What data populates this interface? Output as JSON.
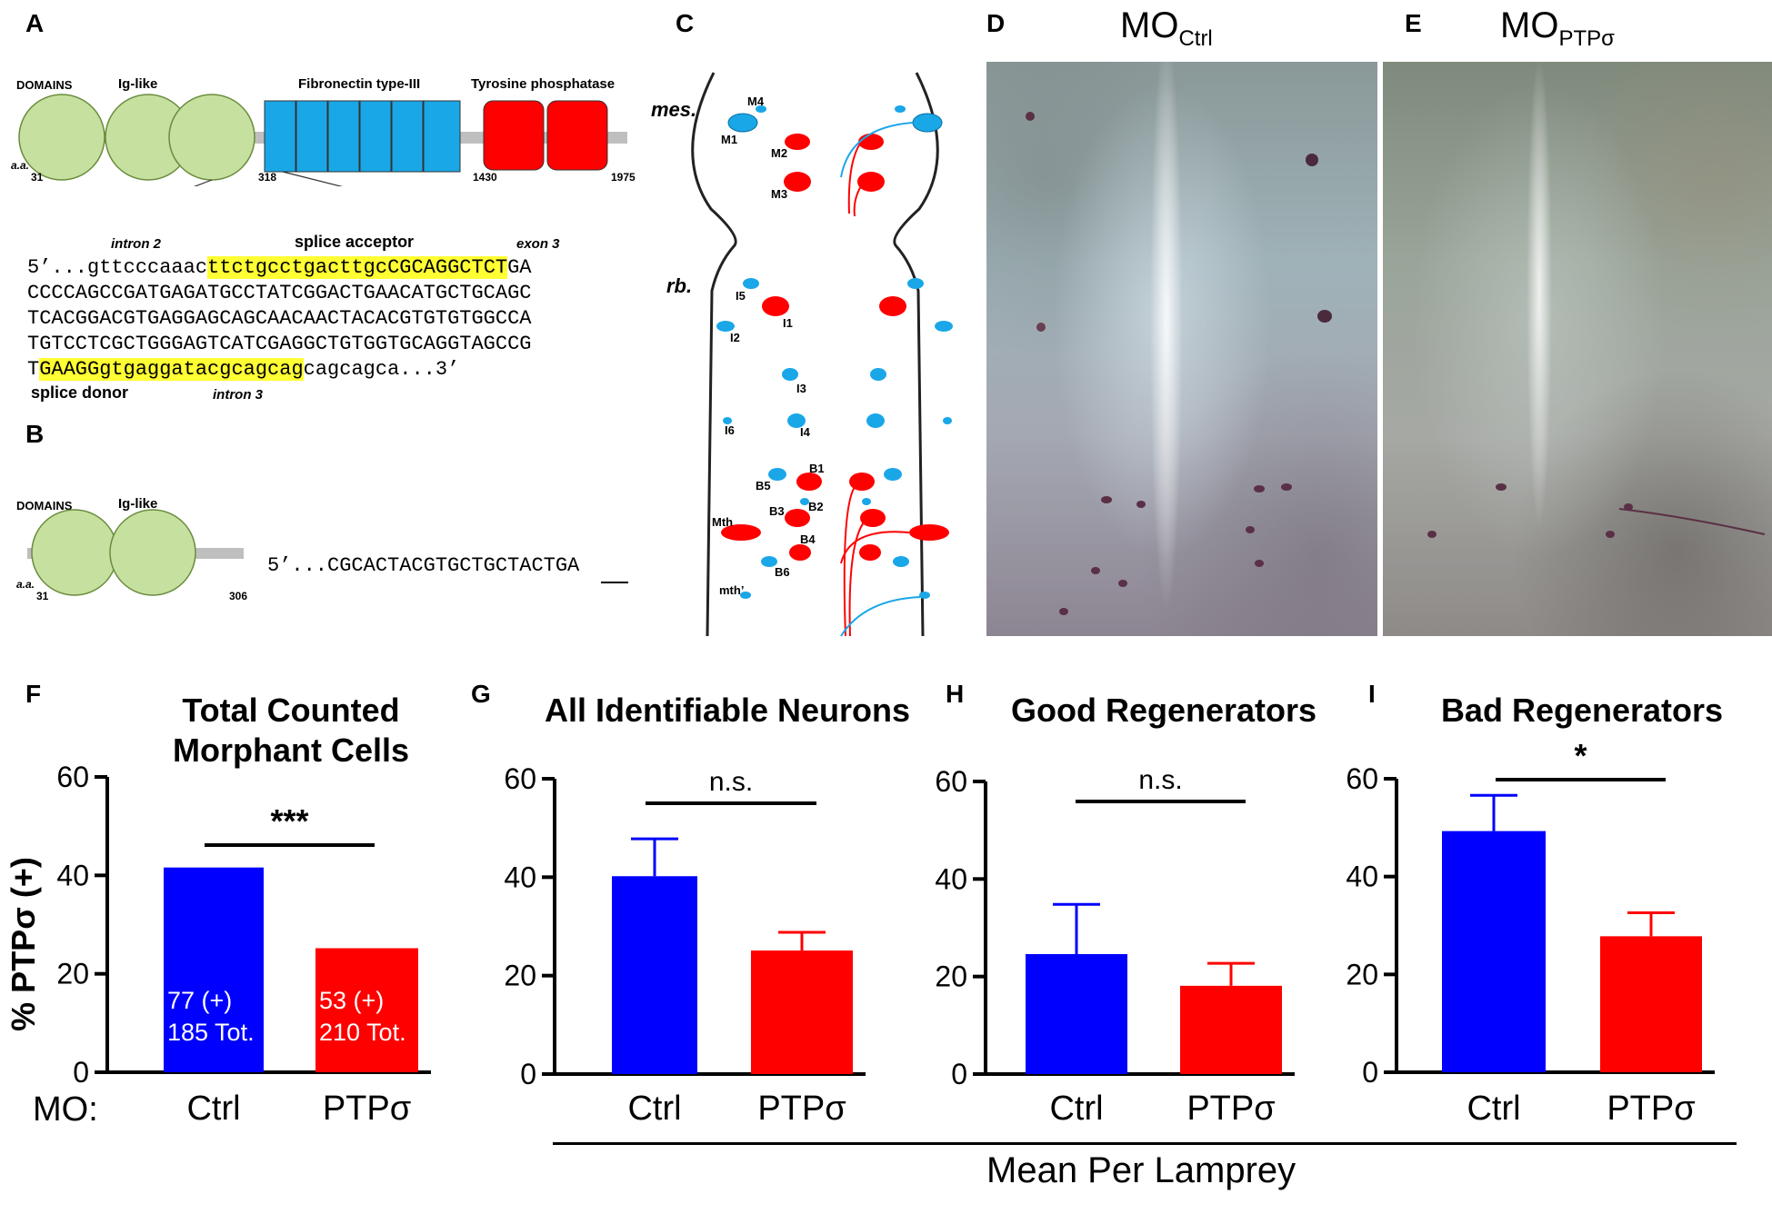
{
  "panel_letters": [
    "A",
    "B",
    "C",
    "D",
    "E",
    "F",
    "G",
    "H",
    "I"
  ],
  "panelA": {
    "domains_label": "DOMAINS",
    "ig_label": "Ig-like",
    "fn_label": "Fibronectin type-III",
    "tp_label": "Tyrosine phosphatase",
    "aa_label": "a.a.",
    "aa_positions": [
      "31",
      "318",
      "1430",
      "1975"
    ],
    "intron2": "intron 2",
    "splice_acceptor": "splice acceptor",
    "exon3": "exon 3",
    "seq_line1_pre": "5’...gttcccaaac",
    "seq_line1_hl": "ttctgcctgacttgcCGCAGGCTCT",
    "seq_line1_post": "GA",
    "seq_line2": "CCCCAGCCGATGAGATGCCTATCGGACTGAACATGCTGCAGC",
    "seq_line3": "TCACGGACGTGAGGAGCAGCAACAACTACACGTGTGTGGCCA",
    "seq_line4": "TGTCCTCGCTGGGAGTCATCGAGGCTGTGGTGCAGGTAGCCG",
    "seq_line5_pre": "T",
    "seq_line5_hl": "GAAGGgtgaggatacgcagcag",
    "seq_line5_post": "cagcagca...3’",
    "splice_donor": "splice donor",
    "intron3": "intron 3"
  },
  "panelB": {
    "domains_label": "DOMAINS",
    "ig_label": "Ig-like",
    "aa_label": "a.a.",
    "aa_positions": [
      "31",
      "306"
    ],
    "seq": "5’...CGCACTACGTGCTGCTACTGA"
  },
  "panelC": {
    "mes": "mes.",
    "rb": "rb.",
    "neurons": [
      "M4",
      "M1",
      "M2",
      "M3",
      "I5",
      "I1",
      "I2",
      "I3",
      "I6",
      "I4",
      "B1",
      "B5",
      "B2",
      "B3",
      "Mth",
      "B4",
      "B6",
      "mth’"
    ]
  },
  "panelD": {
    "title": "MO",
    "sub": "Ctrl"
  },
  "panelE": {
    "title": "MO",
    "sub": "PTPσ"
  },
  "colors": {
    "ctrl": "#0000ff",
    "ptp": "#ff0000",
    "cyan": "#1aa7e8",
    "green": "#c6e0a0",
    "red": "#ff0000"
  },
  "x_prefix": "MO:",
  "y_axis_label": "% PTPσ (+)",
  "mean_label": "Mean Per Lamprey",
  "chart_data": [
    {
      "type": "bar",
      "title_line1": "Total Counted",
      "title_line2": "Morphant Cells",
      "categories": [
        "Ctrl",
        "PTPσ"
      ],
      "values": [
        41.6,
        25.2
      ],
      "errors": [
        0,
        0
      ],
      "ylim": [
        0,
        60
      ],
      "yticks": [
        "0",
        "20",
        "40",
        "60"
      ],
      "significance": "***",
      "bar_labels": [
        [
          "77 (+)",
          "185 Tot."
        ],
        [
          "53 (+)",
          "210 Tot."
        ]
      ]
    },
    {
      "type": "bar",
      "title_line1": "All Identifiable Neurons",
      "categories": [
        "Ctrl",
        "PTPσ"
      ],
      "values": [
        40.2,
        25.1
      ],
      "errors": [
        7.6,
        3.7
      ],
      "ylim": [
        0,
        60
      ],
      "yticks": [
        "0",
        "20",
        "40",
        "60"
      ],
      "significance": "n.s."
    },
    {
      "type": "bar",
      "title_line1": "Good Regenerators",
      "categories": [
        "Ctrl",
        "PTPσ"
      ],
      "values": [
        24.6,
        18.1
      ],
      "errors": [
        10.2,
        4.6
      ],
      "ylim": [
        0,
        60
      ],
      "yticks": [
        "0",
        "20",
        "40",
        "60"
      ],
      "significance": "n.s."
    },
    {
      "type": "bar",
      "title_line1": "Bad Regenerators",
      "categories": [
        "Ctrl",
        "PTPσ"
      ],
      "values": [
        49.3,
        27.8
      ],
      "errors": [
        7.3,
        4.8
      ],
      "ylim": [
        0,
        60
      ],
      "yticks": [
        "0",
        "20",
        "40",
        "60"
      ],
      "significance": "*"
    }
  ]
}
